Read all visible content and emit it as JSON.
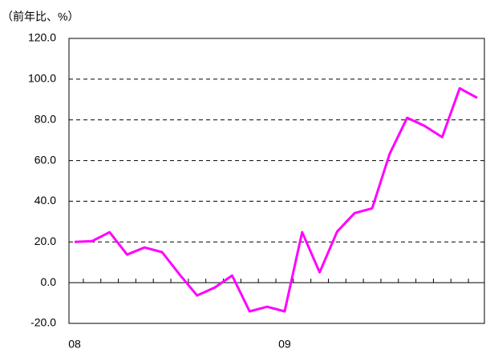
{
  "chart_data": {
    "type": "line",
    "y_label": "（前年比、%）",
    "categories": [
      "08",
      null,
      null,
      null,
      null,
      null,
      null,
      null,
      null,
      null,
      null,
      null,
      "09",
      null,
      null,
      null,
      null,
      null,
      null,
      null,
      null,
      null,
      null,
      null
    ],
    "series": [
      {
        "name": "前年比",
        "color": "#ff00ff",
        "values": [
          20,
          20.4,
          24.8,
          13.8,
          17.3,
          15,
          4,
          -6.3,
          -2.4,
          3.5,
          -14.1,
          -11.8,
          -14.1,
          24.8,
          5.1,
          25.1,
          34.2,
          36.5,
          63.3,
          81,
          77,
          71.5,
          95.5,
          90.8
        ]
      }
    ],
    "ylim": [
      -20,
      120
    ],
    "yticks": [
      {
        "value": -20,
        "label": "-20.0"
      },
      {
        "value": 0,
        "label": "0.0"
      },
      {
        "value": 20,
        "label": "20.0"
      },
      {
        "value": 40,
        "label": "40.0"
      },
      {
        "value": 60,
        "label": "60.0"
      },
      {
        "value": 80,
        "label": "80.0"
      },
      {
        "value": 100,
        "label": "100.0"
      },
      {
        "value": 120,
        "label": "120.0"
      }
    ],
    "grid": true
  }
}
